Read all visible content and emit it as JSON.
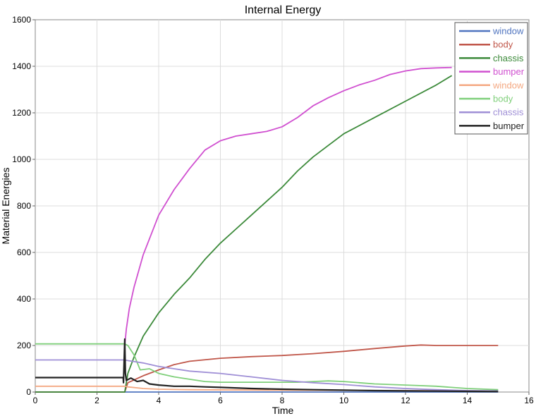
{
  "chart_data": {
    "type": "line",
    "title": "Internal Energy",
    "xlabel": "Time",
    "ylabel": "Material Energies",
    "xlim": [
      0,
      16
    ],
    "ylim": [
      0,
      1600
    ],
    "xticks": [
      0,
      2,
      4,
      6,
      8,
      10,
      12,
      14,
      16
    ],
    "yticks": [
      0,
      200,
      400,
      600,
      800,
      1000,
      1200,
      1400,
      1600
    ],
    "grid": true,
    "legend_position": "top-right",
    "series": [
      {
        "name": "window",
        "color": "#4f74bf",
        "x": [
          0,
          2.9,
          3.0,
          5,
          8,
          12,
          15
        ],
        "y": [
          0,
          0,
          0,
          0,
          0,
          0,
          0
        ]
      },
      {
        "name": "body",
        "color": "#c0574a",
        "x": [
          0,
          2.9,
          3.0,
          3.5,
          4.0,
          4.5,
          5.0,
          6,
          7,
          8,
          9,
          10,
          11,
          12,
          12.5,
          13,
          14,
          15
        ],
        "y": [
          0,
          0,
          40,
          70,
          95,
          118,
          132,
          145,
          152,
          157,
          165,
          175,
          187,
          198,
          202,
          200,
          200,
          200
        ]
      },
      {
        "name": "chassis",
        "color": "#3c8a3a",
        "x": [
          0,
          2.9,
          3.0,
          3.2,
          3.5,
          4.0,
          4.5,
          5.0,
          5.5,
          6,
          6.5,
          7,
          7.5,
          8,
          8.5,
          9,
          9.5,
          10,
          11,
          12,
          13,
          13.5
        ],
        "y": [
          0,
          0,
          80,
          150,
          240,
          340,
          420,
          490,
          570,
          640,
          700,
          760,
          820,
          880,
          950,
          1010,
          1060,
          1110,
          1180,
          1250,
          1320,
          1360
        ]
      },
      {
        "name": "bumper",
        "color": "#d050d0",
        "x": [
          2.9,
          2.95,
          3.05,
          3.2,
          3.5,
          4.0,
          4.5,
          5.0,
          5.5,
          6.0,
          6.5,
          7.0,
          7.5,
          8.0,
          8.5,
          9.0,
          9.5,
          10.0,
          10.5,
          11.0,
          11.5,
          12.0,
          12.5,
          13.0,
          13.5
        ],
        "y": [
          200,
          270,
          360,
          450,
          590,
          760,
          870,
          960,
          1040,
          1080,
          1100,
          1110,
          1120,
          1140,
          1180,
          1230,
          1265,
          1295,
          1320,
          1340,
          1365,
          1380,
          1390,
          1393,
          1395
        ]
      },
      {
        "name": "window",
        "color": "#f4a882",
        "x": [
          0,
          2.9,
          3.0,
          3.5,
          4.0,
          5,
          8,
          12,
          15
        ],
        "y": [
          25,
          25,
          22,
          15,
          12,
          10,
          8,
          6,
          5
        ]
      },
      {
        "name": "body",
        "color": "#7fcf7a",
        "x": [
          0,
          2.9,
          3.0,
          3.2,
          3.4,
          3.7,
          4.0,
          4.5,
          5.0,
          5.5,
          6,
          7,
          8,
          8.5,
          9,
          9.5,
          10,
          10.5,
          11,
          12,
          13,
          14,
          15
        ],
        "y": [
          207,
          207,
          200,
          160,
          95,
          100,
          80,
          65,
          55,
          45,
          42,
          42,
          42,
          42,
          45,
          48,
          45,
          40,
          35,
          30,
          25,
          15,
          10
        ]
      },
      {
        "name": "chassis",
        "color": "#9f8fd6",
        "x": [
          0,
          2.9,
          3.0,
          3.5,
          4.0,
          4.5,
          5,
          6,
          7,
          8,
          9,
          10,
          11,
          12,
          13,
          14,
          15
        ],
        "y": [
          138,
          138,
          135,
          125,
          110,
          100,
          90,
          80,
          65,
          50,
          40,
          32,
          22,
          15,
          10,
          6,
          5
        ]
      },
      {
        "name": "bumper",
        "color": "#222222",
        "x": [
          0,
          2.85,
          2.86,
          2.9,
          2.92,
          2.95,
          3.1,
          3.3,
          3.5,
          3.7,
          4.0,
          4.5,
          5,
          5.5,
          6,
          7,
          8,
          9,
          10,
          11,
          12,
          13,
          14,
          15
        ],
        "y": [
          62,
          62,
          40,
          228,
          80,
          50,
          60,
          45,
          50,
          35,
          30,
          25,
          25,
          22,
          20,
          15,
          12,
          10,
          8,
          6,
          5,
          4,
          3,
          2
        ]
      }
    ]
  }
}
